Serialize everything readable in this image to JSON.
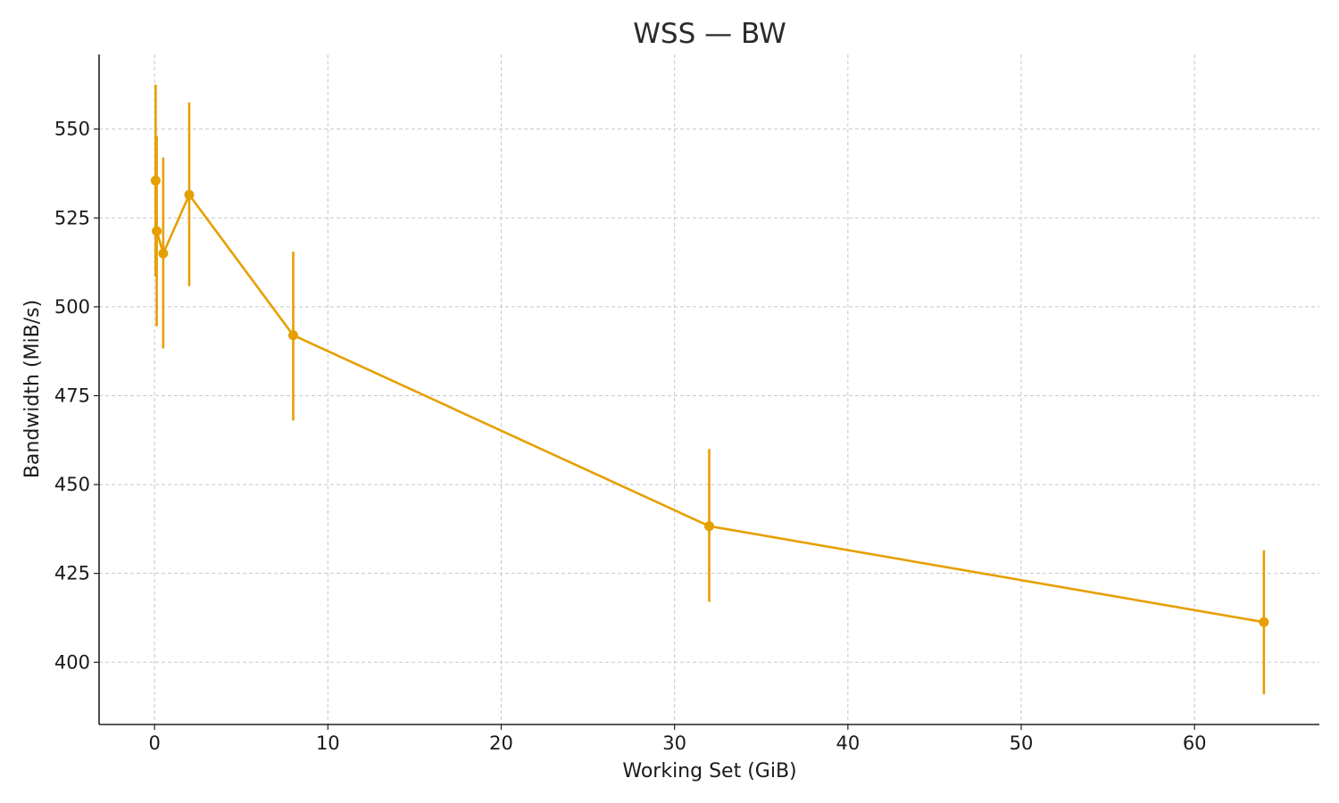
{
  "chart_data": {
    "type": "line",
    "title": "WSS — BW",
    "xlabel": "Working Set (GiB)",
    "ylabel": "Bandwidth (MiB/s)",
    "xlim": [
      -3.2,
      67.2
    ],
    "ylim": [
      382.5,
      571
    ],
    "xticks": [
      0,
      10,
      20,
      30,
      40,
      50,
      60
    ],
    "yticks": [
      400,
      425,
      450,
      475,
      500,
      525,
      550
    ],
    "grid": true,
    "color": "#e69f00",
    "series": [
      {
        "points": [
          {
            "x": 0.0625,
            "y": 535.5,
            "err_low": 508.5,
            "err_high": 562.5
          },
          {
            "x": 0.125,
            "y": 521.3,
            "err_low": 494.5,
            "err_high": 548.0
          },
          {
            "x": 0.5,
            "y": 515.0,
            "err_low": 488.3,
            "err_high": 542.0
          },
          {
            "x": 2,
            "y": 531.5,
            "err_low": 505.8,
            "err_high": 557.5
          },
          {
            "x": 8,
            "y": 492.0,
            "err_low": 468.0,
            "err_high": 515.5
          },
          {
            "x": 32,
            "y": 438.3,
            "err_low": 417.0,
            "err_high": 460.0
          },
          {
            "x": 64,
            "y": 411.3,
            "err_low": 391.0,
            "err_high": 431.5
          }
        ]
      }
    ]
  }
}
